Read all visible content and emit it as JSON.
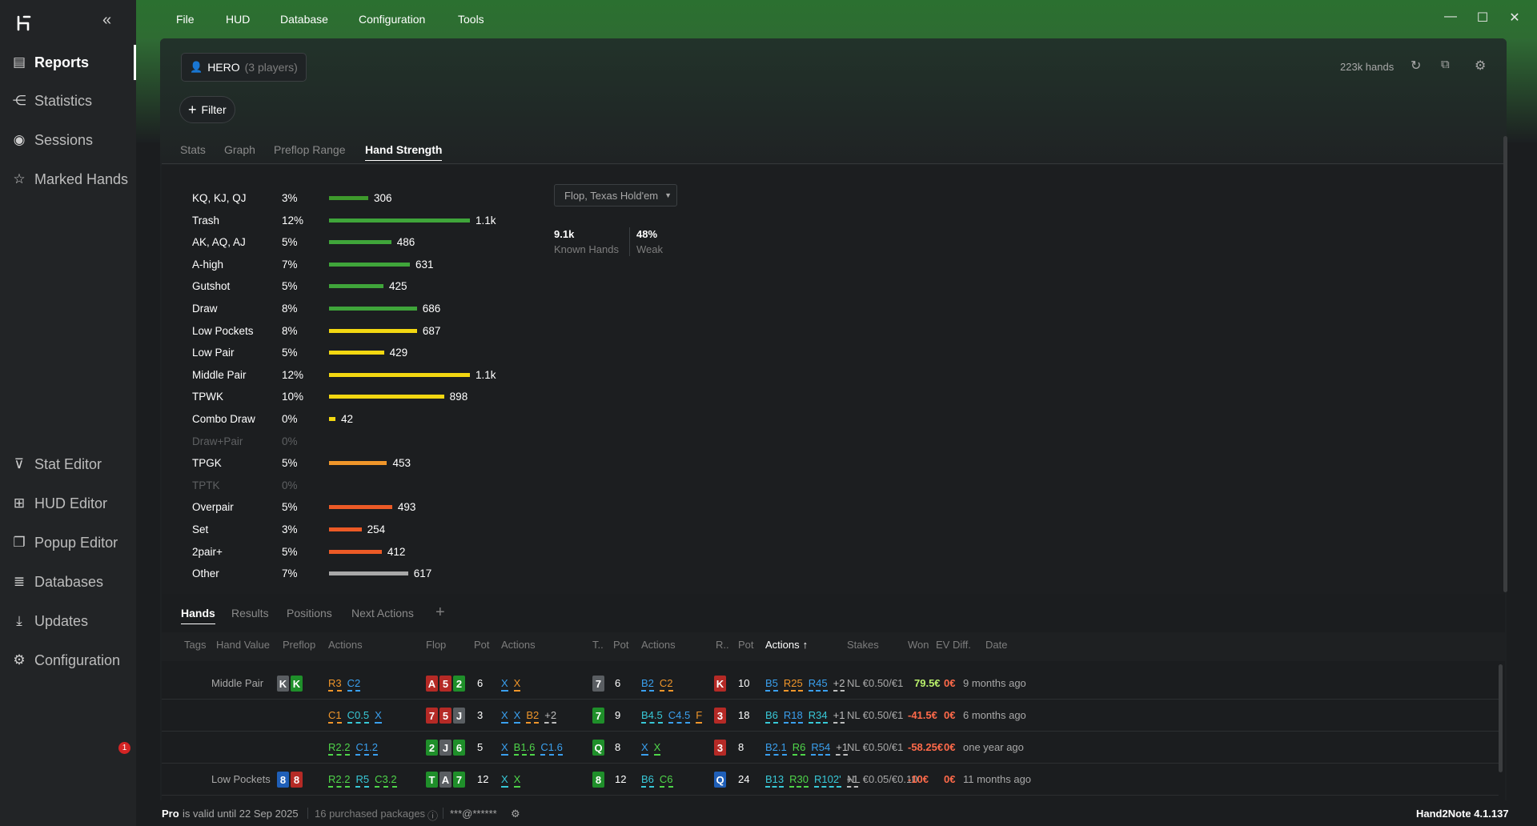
{
  "sidebar": {
    "items": [
      {
        "label": "Reports",
        "icon": "report-icon",
        "name": "reports"
      },
      {
        "label": "Statistics",
        "icon": "share-nodes-icon",
        "name": "statistics"
      },
      {
        "label": "Sessions",
        "icon": "broadcast-icon",
        "name": "sessions"
      },
      {
        "label": "Marked Hands",
        "icon": "star-list-icon",
        "name": "marked-hands"
      },
      {
        "label": "Stat Editor",
        "icon": "filter-icon",
        "name": "stat-editor"
      },
      {
        "label": "HUD Editor",
        "icon": "grid-icon",
        "name": "hud-editor"
      },
      {
        "label": "Popup Editor",
        "icon": "copy-icon",
        "name": "popup-editor"
      },
      {
        "label": "Databases",
        "icon": "database-icon",
        "name": "databases"
      },
      {
        "label": "Updates",
        "icon": "download-icon",
        "name": "updates"
      },
      {
        "label": "Configuration",
        "icon": "gear-icon",
        "name": "configuration"
      }
    ],
    "updates_badge": "1"
  },
  "menu": [
    "File",
    "HUD",
    "Database",
    "Configuration",
    "Tools"
  ],
  "header": {
    "player": "HERO",
    "player_count": "(3 players)",
    "filter_label": "Filter",
    "hands_count": "223k hands"
  },
  "tabs": [
    "Stats",
    "Graph",
    "Preflop Range",
    "Hand Strength"
  ],
  "hand_strength": {
    "rows": [
      {
        "label": "KQ, KJ, QJ",
        "pct": "3%",
        "count": "306",
        "value": 306,
        "color": "#3e9a2c"
      },
      {
        "label": "Trash",
        "pct": "12%",
        "count": "1.1k",
        "value": 1100,
        "color": "#3fa53a"
      },
      {
        "label": "AK, AQ, AJ",
        "pct": "5%",
        "count": "486",
        "value": 486,
        "color": "#3fa53a"
      },
      {
        "label": "A-high",
        "pct": "7%",
        "count": "631",
        "value": 631,
        "color": "#3fa53a"
      },
      {
        "label": "Gutshot",
        "pct": "5%",
        "count": "425",
        "value": 425,
        "color": "#3fa53a"
      },
      {
        "label": "Draw",
        "pct": "8%",
        "count": "686",
        "value": 686,
        "color": "#3fa53a"
      },
      {
        "label": "Low Pockets",
        "pct": "8%",
        "count": "687",
        "value": 687,
        "color": "#f2d711"
      },
      {
        "label": "Low Pair",
        "pct": "5%",
        "count": "429",
        "value": 429,
        "color": "#f2d711"
      },
      {
        "label": "Middle Pair",
        "pct": "12%",
        "count": "1.1k",
        "value": 1100,
        "color": "#f2d711"
      },
      {
        "label": "TPWK",
        "pct": "10%",
        "count": "898",
        "value": 898,
        "color": "#f2d711"
      },
      {
        "label": "Combo Draw",
        "pct": "0%",
        "count": "42",
        "value": 42,
        "color": "#f2d711"
      },
      {
        "label": "Draw+Pair",
        "pct": "0%",
        "count": "",
        "value": 0,
        "color": "#f2d711"
      },
      {
        "label": "TPGK",
        "pct": "5%",
        "count": "453",
        "value": 453,
        "color": "#f0962a"
      },
      {
        "label": "TPTK",
        "pct": "0%",
        "count": "",
        "value": 0,
        "color": "#f0962a"
      },
      {
        "label": "Overpair",
        "pct": "5%",
        "count": "493",
        "value": 493,
        "color": "#ec5a26"
      },
      {
        "label": "Set",
        "pct": "3%",
        "count": "254",
        "value": 254,
        "color": "#ec5a26"
      },
      {
        "label": "2pair+",
        "pct": "5%",
        "count": "412",
        "value": 412,
        "color": "#ec5a26"
      },
      {
        "label": "Other",
        "pct": "7%",
        "count": "617",
        "value": 617,
        "color": "#a8a8a8"
      }
    ],
    "dropdown": "Flop, Texas Hold'em",
    "known_hands_value": "9.1k",
    "known_hands_label": "Known Hands",
    "weak_value": "48%",
    "weak_label": "Weak"
  },
  "bottom_tabs": [
    "Hands",
    "Results",
    "Positions",
    "Next Actions"
  ],
  "columns": [
    "Tags",
    "Hand Value",
    "Preflop",
    "Actions",
    "Flop",
    "Pot",
    "Actions",
    "T..",
    "Pot",
    "Actions",
    "R..",
    "Pot",
    "Actions",
    "Stakes",
    "Won",
    "EV Diff.",
    "Date"
  ],
  "sort_arrow": "↑",
  "hands": [
    {
      "hand_value": "Middle Pair",
      "preflop_cards": [
        {
          "r": "K",
          "s": "s"
        },
        {
          "r": "K",
          "s": "c"
        }
      ],
      "pre_actions": [
        {
          "t": "R3",
          "c": "o"
        },
        {
          "t": "C2",
          "c": "b"
        }
      ],
      "flop_cards": [
        {
          "r": "A",
          "s": "h"
        },
        {
          "r": "5",
          "s": "h"
        },
        {
          "r": "2",
          "s": "c"
        }
      ],
      "flop_pot": "6",
      "flop_actions": [
        {
          "t": "X",
          "c": "b"
        },
        {
          "t": "X",
          "c": "o"
        }
      ],
      "turn_card": {
        "r": "7",
        "s": "s"
      },
      "turn_pot": "6",
      "turn_actions": [
        {
          "t": "B2",
          "c": "b"
        },
        {
          "t": "C2",
          "c": "o"
        }
      ],
      "river_card": {
        "r": "K",
        "s": "h"
      },
      "river_pot": "10",
      "river_actions": [
        {
          "t": "B5",
          "c": "b"
        },
        {
          "t": "R25",
          "c": "o"
        },
        {
          "t": "R45",
          "c": "b"
        },
        {
          "t": "+2",
          "c": "g"
        }
      ],
      "stakes": "NL €0.50/€1",
      "won": "79.5€",
      "won_pos": true,
      "ev": "0€",
      "date": "9 months ago"
    },
    {
      "hand_value": "",
      "preflop_cards": [],
      "pre_actions": [
        {
          "t": "C1",
          "c": "o"
        },
        {
          "t": "C0.5",
          "c": "c"
        },
        {
          "t": "X",
          "c": "b"
        }
      ],
      "flop_cards": [
        {
          "r": "7",
          "s": "h"
        },
        {
          "r": "5",
          "s": "h"
        },
        {
          "r": "J",
          "s": "s"
        }
      ],
      "flop_pot": "3",
      "flop_actions": [
        {
          "t": "X",
          "c": "b"
        },
        {
          "t": "X",
          "c": "b"
        },
        {
          "t": "B2",
          "c": "o"
        },
        {
          "t": "+2",
          "c": "g"
        }
      ],
      "turn_card": {
        "r": "7",
        "s": "c"
      },
      "turn_pot": "9",
      "turn_actions": [
        {
          "t": "B4.5",
          "c": "c"
        },
        {
          "t": "C4.5",
          "c": "b"
        },
        {
          "t": "F",
          "c": "o"
        }
      ],
      "river_card": {
        "r": "3",
        "s": "h"
      },
      "river_pot": "18",
      "river_actions": [
        {
          "t": "B6",
          "c": "c"
        },
        {
          "t": "R18",
          "c": "b"
        },
        {
          "t": "R34",
          "c": "c"
        },
        {
          "t": "+1",
          "c": "g"
        }
      ],
      "stakes": "NL €0.50/€1",
      "won": "-41.5€",
      "won_pos": false,
      "ev": "0€",
      "date": "6 months ago"
    },
    {
      "hand_value": "",
      "preflop_cards": [],
      "pre_actions": [
        {
          "t": "R2.2",
          "c": "gr"
        },
        {
          "t": "C1.2",
          "c": "b"
        }
      ],
      "flop_cards": [
        {
          "r": "2",
          "s": "c"
        },
        {
          "r": "J",
          "s": "s"
        },
        {
          "r": "6",
          "s": "c"
        }
      ],
      "flop_pot": "5",
      "flop_actions": [
        {
          "t": "X",
          "c": "b"
        },
        {
          "t": "B1.6",
          "c": "gr"
        },
        {
          "t": "C1.6",
          "c": "b"
        }
      ],
      "turn_card": {
        "r": "Q",
        "s": "c"
      },
      "turn_pot": "8",
      "turn_actions": [
        {
          "t": "X",
          "c": "b"
        },
        {
          "t": "X",
          "c": "gr"
        }
      ],
      "river_card": {
        "r": "3",
        "s": "h"
      },
      "river_pot": "8",
      "river_actions": [
        {
          "t": "B2.1",
          "c": "b"
        },
        {
          "t": "R6",
          "c": "gr"
        },
        {
          "t": "R54",
          "c": "b"
        },
        {
          "t": "+1",
          "c": "g"
        }
      ],
      "stakes": "NL €0.50/€1",
      "won": "-58.25€",
      "won_pos": false,
      "ev": "0€",
      "date": "one year ago"
    },
    {
      "hand_value": "Low Pockets",
      "preflop_cards": [
        {
          "r": "8",
          "s": "d"
        },
        {
          "r": "8",
          "s": "h"
        }
      ],
      "pre_actions": [
        {
          "t": "R2.2",
          "c": "gr"
        },
        {
          "t": "R5",
          "c": "c"
        },
        {
          "t": "C3.2",
          "c": "gr"
        }
      ],
      "flop_cards": [
        {
          "r": "T",
          "s": "c"
        },
        {
          "r": "A",
          "s": "s"
        },
        {
          "r": "7",
          "s": "c"
        }
      ],
      "flop_pot": "12",
      "flop_actions": [
        {
          "t": "X",
          "c": "c"
        },
        {
          "t": "X",
          "c": "gr"
        }
      ],
      "turn_card": {
        "r": "8",
        "s": "c"
      },
      "turn_pot": "12",
      "turn_actions": [
        {
          "t": "B6",
          "c": "c"
        },
        {
          "t": "C6",
          "c": "gr"
        }
      ],
      "river_card": {
        "r": "Q",
        "s": "d"
      },
      "river_pot": "24",
      "river_actions": [
        {
          "t": "B13",
          "c": "c"
        },
        {
          "t": "R30",
          "c": "gr"
        },
        {
          "t": "R102'",
          "c": "c"
        },
        {
          "t": "+1",
          "c": "g"
        }
      ],
      "stakes": "NL €0.05/€0.10",
      "won": "-10€",
      "won_pos": false,
      "ev": "0€",
      "date": "11 months ago"
    }
  ],
  "status": {
    "plan": "Pro",
    "valid": "is valid until 22 Sep 2025",
    "packages": "16 purchased packages",
    "account": "***@******",
    "version": "Hand2Note 4.1.137"
  },
  "colors": {
    "spade": "#5a5e62",
    "club": "#1f8f2a",
    "heart": "#b52a26",
    "diamond": "#1f5fb8",
    "action_orange": "#f0962a",
    "action_blue": "#3aa0ef",
    "action_cyan": "#38c9d8",
    "action_green": "#4fd64a",
    "action_gray": "#bdbdbd"
  }
}
